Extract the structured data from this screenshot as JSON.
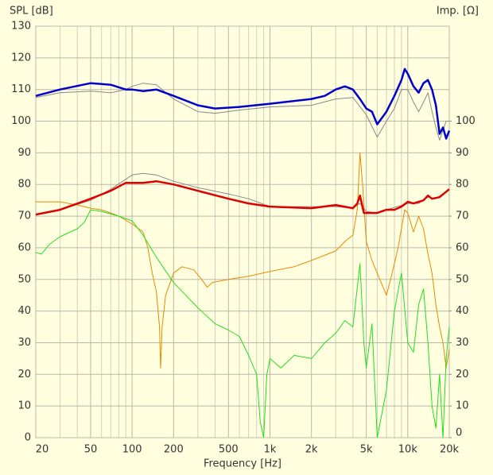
{
  "chart_data": {
    "type": "line",
    "ylabel": "SPL [dB]",
    "y2label": "Imp. [Ω]",
    "xlabel": "Frequency [Hz]",
    "xscale": "log",
    "grid": true,
    "xlim": [
      20,
      20000
    ],
    "xticks": [
      20,
      50,
      100,
      200,
      500,
      {
        "value": 1000,
        "label": "1k"
      },
      {
        "value": 2000,
        "label": "2k"
      },
      {
        "value": 5000,
        "label": "5k"
      },
      {
        "value": 10000,
        "label": "10k"
      },
      {
        "value": 20000,
        "label": "20k"
      }
    ],
    "minor_xticks": [
      30,
      40,
      60,
      70,
      80,
      90,
      300,
      400,
      600,
      700,
      800,
      900,
      3000,
      4000,
      6000,
      7000,
      8000,
      9000
    ],
    "ylim": [
      0,
      130
    ],
    "yticks": [
      0,
      10,
      20,
      30,
      40,
      50,
      60,
      70,
      80,
      90,
      100,
      110,
      120,
      130
    ],
    "y2lim": [
      0,
      130
    ],
    "y2ticks": [
      0,
      10,
      20,
      30,
      40,
      50,
      60,
      70,
      80,
      90,
      100
    ],
    "series": [
      {
        "color": "#888888",
        "width": 1,
        "x": [
          20,
          30,
          50,
          70,
          90,
          100,
          120,
          150,
          200,
          300,
          400,
          600,
          1000,
          2000,
          3000,
          4000,
          5000,
          6000,
          7000,
          8000,
          9000,
          10000,
          11000,
          12000,
          13000,
          14000,
          15000,
          16000,
          17000,
          19000,
          20000
        ],
        "values": [
          107.5,
          109,
          109.5,
          109,
          110,
          111,
          112,
          111.5,
          107,
          103,
          102.5,
          103.5,
          104.5,
          105,
          107,
          107.5,
          102,
          95,
          100,
          104,
          110,
          110,
          106,
          103,
          106,
          109,
          103,
          98,
          94,
          100,
          100
        ]
      },
      {
        "color": "#888888",
        "width": 1,
        "x": [
          20,
          30,
          50,
          70,
          100,
          120,
          150,
          200,
          300,
          500,
          700,
          1000,
          2000,
          3000,
          4000,
          4500,
          5000,
          6000,
          7000,
          10000,
          12000,
          14000,
          16000,
          20000
        ],
        "values": [
          70.5,
          72,
          75,
          78.5,
          83,
          83.5,
          83,
          81,
          79,
          77,
          75.5,
          73,
          73,
          73,
          72.5,
          74,
          71.5,
          71,
          72,
          74,
          74,
          76,
          75.5,
          78.5
        ]
      },
      {
        "color": "#e68a00",
        "width": 1,
        "x": [
          20,
          30,
          40,
          50,
          60,
          70,
          80,
          100,
          120,
          130,
          140,
          150,
          158,
          161,
          165,
          175,
          200,
          230,
          280,
          320,
          350,
          380,
          500,
          700,
          1000,
          1500,
          2000,
          3000,
          3500,
          4000,
          4300,
          4500,
          4700,
          5000,
          5500,
          6000,
          7000,
          7500,
          8000,
          8500,
          9500,
          10000,
          11000,
          12000,
          13000,
          14000,
          15000,
          16000,
          17000,
          18000,
          19000,
          20000
        ],
        "values": [
          74.5,
          74.5,
          73.5,
          72.5,
          72,
          71,
          70,
          67.5,
          65,
          60,
          52,
          46,
          35,
          22,
          35,
          45,
          52,
          54,
          53,
          50,
          47.5,
          49,
          50,
          51,
          52.5,
          54,
          56,
          59,
          62,
          64,
          72,
          90,
          80,
          62,
          56,
          52,
          45,
          50,
          55,
          60,
          72,
          71,
          65,
          70,
          66,
          58,
          52,
          42,
          35,
          30,
          22,
          28
        ]
      },
      {
        "color": "#22dd22",
        "width": 1,
        "x": [
          20,
          22,
          25,
          30,
          40,
          45,
          50,
          60,
          80,
          100,
          120,
          150,
          200,
          300,
          400,
          500,
          600,
          700,
          800,
          850,
          900,
          950,
          1000,
          1200,
          1500,
          2000,
          2500,
          3000,
          3500,
          4000,
          4500,
          4800,
          5000,
          5500,
          6000,
          7000,
          8000,
          9000,
          10000,
          11000,
          12000,
          13000,
          14000,
          15000,
          16000,
          17000,
          18000,
          19000,
          20000
        ],
        "values": [
          58.5,
          58,
          61,
          63.5,
          66,
          68,
          72,
          71.5,
          70,
          68.5,
          64,
          57,
          49,
          41,
          36,
          34,
          32,
          26,
          20,
          5,
          0,
          20,
          25,
          22,
          26,
          25,
          30,
          33,
          37,
          35,
          55,
          30,
          22,
          36,
          0,
          15,
          40,
          52,
          30,
          27,
          42,
          47,
          30,
          10,
          3,
          20,
          0,
          25,
          35
        ]
      },
      {
        "color": "#0000cc",
        "width": 2.5,
        "x": [
          20,
          30,
          50,
          70,
          90,
          100,
          120,
          150,
          200,
          300,
          400,
          600,
          1000,
          2000,
          2500,
          3000,
          3500,
          4000,
          4500,
          5000,
          5500,
          6000,
          7000,
          8000,
          9000,
          9500,
          10000,
          11000,
          12000,
          13000,
          14000,
          15000,
          16000,
          17000,
          18000,
          19000,
          20000
        ],
        "values": [
          108,
          110,
          112,
          111.5,
          110,
          110,
          109.5,
          110,
          108,
          105,
          104,
          104.5,
          105.5,
          107,
          108,
          110,
          111,
          110,
          107,
          104,
          103,
          99,
          103,
          108,
          113,
          116.5,
          115,
          111,
          109,
          112,
          113,
          110,
          105,
          96,
          98,
          94.5,
          97
        ]
      },
      {
        "color": "#dd0000",
        "width": 2.5,
        "x": [
          20,
          30,
          50,
          70,
          90,
          100,
          120,
          150,
          200,
          300,
          500,
          700,
          1000,
          2000,
          3000,
          4000,
          4300,
          4500,
          4800,
          6000,
          7000,
          8000,
          9000,
          10000,
          11000,
          13000,
          14000,
          15000,
          17000,
          20000
        ],
        "values": [
          70.5,
          72,
          75.5,
          78,
          80.5,
          80.5,
          80.5,
          81,
          80,
          78,
          75.5,
          74,
          73,
          72.5,
          73.5,
          72.5,
          74,
          76.5,
          71,
          71,
          72,
          72,
          73,
          74.5,
          74,
          75,
          76.5,
          75.5,
          76,
          78.5
        ]
      }
    ]
  }
}
